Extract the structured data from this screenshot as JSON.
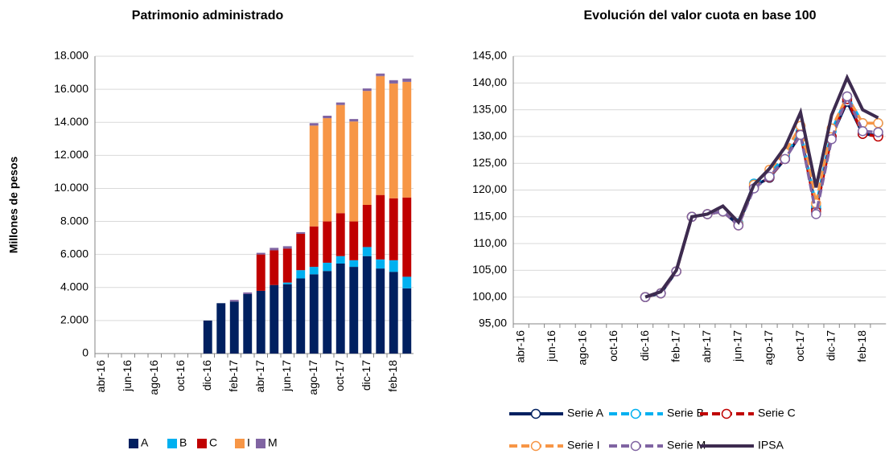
{
  "chart_data": [
    {
      "type": "bar",
      "title": "Patrimonio administrado",
      "y_label": "Millones de pesos",
      "stacked": true,
      "grid": true,
      "categories": [
        "abr-16",
        null,
        "jun-16",
        null,
        "ago-16",
        null,
        "oct-16",
        null,
        "dic-16",
        null,
        "feb-17",
        null,
        "abr-17",
        null,
        "jun-17",
        null,
        "ago-17",
        null,
        "oct-17",
        null,
        "dic-17",
        null,
        "feb-18",
        null
      ],
      "series": [
        {
          "name": "A",
          "color": "#002060",
          "values": [
            null,
            null,
            null,
            null,
            null,
            null,
            null,
            null,
            2000,
            3050,
            3150,
            3600,
            3800,
            4150,
            4200,
            4550,
            4800,
            5000,
            5450,
            5250,
            5900,
            5150,
            4950,
            3950
          ]
        },
        {
          "name": "B",
          "color": "#00b0f0",
          "values": [
            null,
            null,
            null,
            null,
            null,
            null,
            null,
            null,
            0,
            0,
            0,
            0,
            0,
            0,
            100,
            500,
            450,
            500,
            450,
            400,
            550,
            550,
            700,
            700
          ]
        },
        {
          "name": "C",
          "color": "#c00000",
          "values": [
            null,
            null,
            null,
            null,
            null,
            null,
            null,
            null,
            0,
            0,
            0,
            0,
            2200,
            2100,
            2050,
            2200,
            2450,
            2500,
            2600,
            2350,
            2550,
            3900,
            3750,
            4800
          ]
        },
        {
          "name": "I",
          "color": "#f79646",
          "values": [
            null,
            null,
            null,
            null,
            null,
            null,
            null,
            null,
            0,
            0,
            0,
            0,
            0,
            0,
            0,
            0,
            6100,
            6250,
            6550,
            6050,
            6900,
            7200,
            6950,
            7000
          ]
        },
        {
          "name": "M",
          "color": "#8064a2",
          "values": [
            null,
            null,
            null,
            null,
            null,
            null,
            null,
            null,
            0,
            0,
            100,
            100,
            100,
            150,
            150,
            100,
            150,
            150,
            150,
            150,
            150,
            150,
            200,
            200
          ]
        }
      ],
      "ylim": [
        0,
        18000
      ],
      "yticks": [
        0,
        {
          "value": 2000,
          "label": "2.000"
        },
        {
          "value": 4000,
          "label": "4.000"
        },
        {
          "value": 6000,
          "label": "6.000"
        },
        {
          "value": 8000,
          "label": "8.000"
        },
        {
          "value": 10000,
          "label": "10.000"
        },
        {
          "value": 12000,
          "label": "12.000"
        },
        {
          "value": 14000,
          "label": "14.000"
        },
        {
          "value": 16000,
          "label": "16.000"
        },
        {
          "value": 18000,
          "label": "18.000"
        }
      ]
    },
    {
      "type": "line",
      "title": "Evolución del valor cuota en base 100",
      "grid": true,
      "categories": [
        "abr-16",
        null,
        "jun-16",
        null,
        "ago-16",
        null,
        "oct-16",
        null,
        "dic-16",
        null,
        "feb-17",
        null,
        "abr-17",
        null,
        "jun-17",
        null,
        "ago-17",
        null,
        "oct-17",
        null,
        "dic-17",
        null,
        "feb-18",
        null
      ],
      "series": [
        {
          "name": "Serie A",
          "color": "#002060",
          "dashed": false,
          "markers": true,
          "values": [
            null,
            null,
            null,
            null,
            null,
            null,
            null,
            null,
            100,
            100.7,
            104.8,
            115,
            115.5,
            116,
            113.5,
            120.7,
            122.3,
            125.8,
            130.5,
            116.5,
            130,
            136.5,
            130.5,
            130.2
          ]
        },
        {
          "name": "Serie B",
          "color": "#00b0f0",
          "dashed": true,
          "markers": true,
          "values": [
            null,
            null,
            null,
            null,
            null,
            null,
            null,
            null,
            100,
            100.7,
            104.8,
            115,
            115.5,
            116,
            113.8,
            121.2,
            122.8,
            126.5,
            131,
            117,
            131,
            137.5,
            132.5,
            132.5
          ]
        },
        {
          "name": "Serie C",
          "color": "#c00000",
          "dashed": true,
          "markers": true,
          "values": [
            null,
            null,
            null,
            null,
            null,
            null,
            null,
            null,
            100,
            100.7,
            104.8,
            115,
            115.5,
            116,
            113.4,
            120.5,
            122.4,
            125.8,
            130.5,
            116,
            130,
            137,
            130.5,
            130
          ]
        },
        {
          "name": "Serie I",
          "color": "#f79646",
          "dashed": true,
          "markers": true,
          "values": [
            null,
            null,
            null,
            null,
            null,
            null,
            null,
            null,
            100,
            100.7,
            104.8,
            115,
            115.5,
            116,
            113.6,
            121,
            123.8,
            127,
            132,
            117.5,
            131.5,
            137.5,
            132.5,
            132.5
          ]
        },
        {
          "name": "Serie M",
          "color": "#8064a2",
          "dashed": true,
          "markers": true,
          "values": [
            null,
            null,
            null,
            null,
            null,
            null,
            null,
            null,
            100,
            100.7,
            104.8,
            115,
            115.5,
            116,
            113.4,
            120.3,
            122.5,
            125.8,
            130.3,
            115.5,
            129.5,
            137.5,
            131,
            130.8
          ]
        },
        {
          "name": "IPSA",
          "color": "#3d2b4f",
          "dashed": false,
          "markers": false,
          "values": [
            null,
            null,
            null,
            null,
            null,
            null,
            null,
            null,
            100,
            101,
            105,
            115,
            115.5,
            117,
            114,
            121,
            124,
            128,
            134.5,
            120.5,
            134,
            141,
            135,
            133.5
          ]
        }
      ],
      "ylim": [
        95,
        145
      ],
      "yticks": [
        {
          "value": 95,
          "label": "95,00"
        },
        {
          "value": 100,
          "label": "100,00"
        },
        {
          "value": 105,
          "label": "105,00"
        },
        {
          "value": 110,
          "label": "110,00"
        },
        {
          "value": 115,
          "label": "115,00"
        },
        {
          "value": 120,
          "label": "120,00"
        },
        {
          "value": 125,
          "label": "125,00"
        },
        {
          "value": 130,
          "label": "130,00"
        },
        {
          "value": 135,
          "label": "135,00"
        },
        {
          "value": 140,
          "label": "140,00"
        },
        {
          "value": 145,
          "label": "145,00"
        }
      ]
    }
  ]
}
